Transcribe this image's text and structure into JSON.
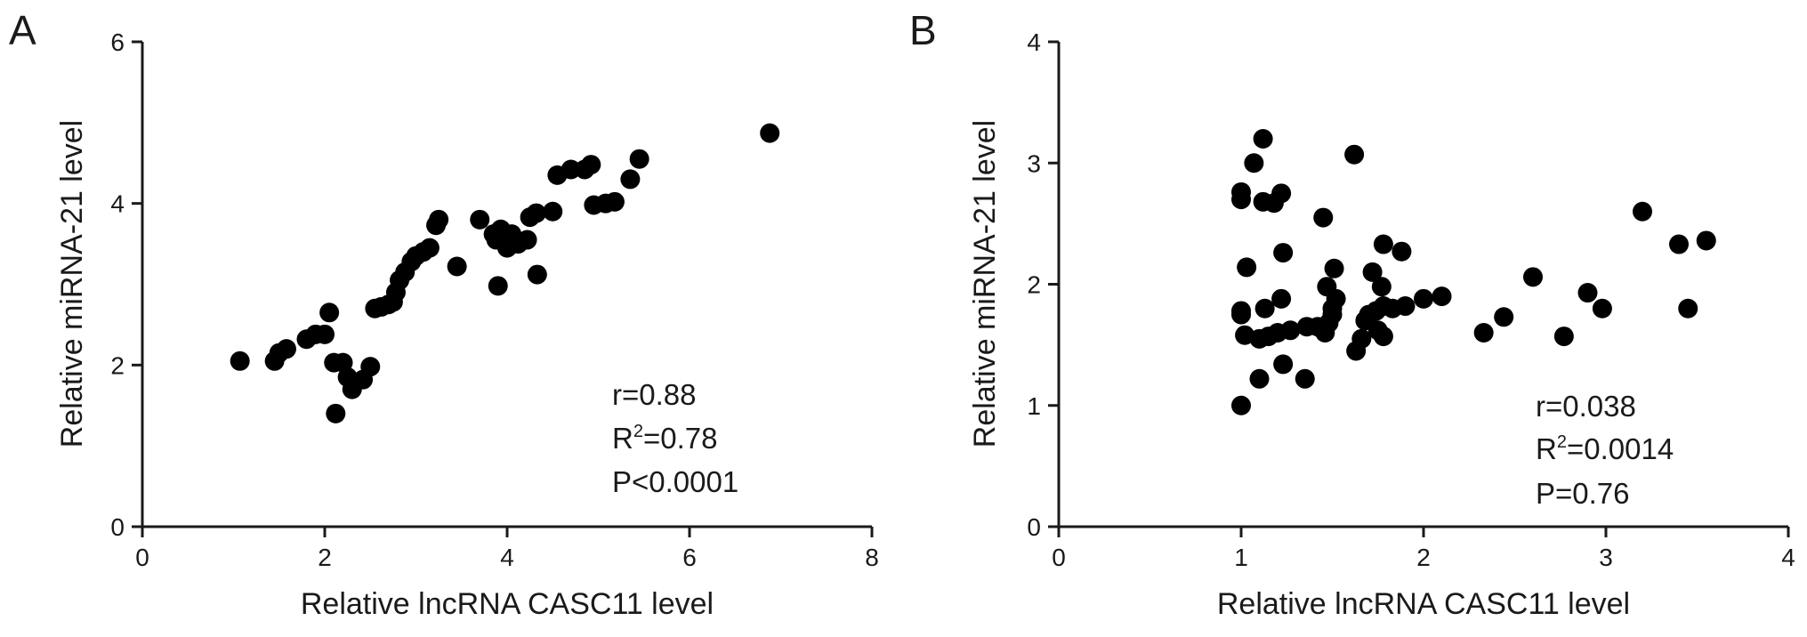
{
  "chart_data": [
    {
      "type": "scatter",
      "panel_label": "A",
      "xlabel": "Relative lncRNA CASC11 level",
      "ylabel": "Relative miRNA-21 level",
      "xlim": [
        0,
        8
      ],
      "ylim": [
        0,
        6
      ],
      "xticks": [
        "0",
        "2",
        "4",
        "6",
        "8"
      ],
      "yticks": [
        "0",
        "2",
        "4",
        "6"
      ],
      "grid": false,
      "stats": {
        "r": "r=0.88",
        "r2_prefix": "R",
        "r2_sup": "2",
        "r2_value": "=0.78",
        "p": "P<0.0001"
      },
      "points": [
        [
          1.07,
          2.05
        ],
        [
          1.45,
          2.05
        ],
        [
          1.5,
          2.15
        ],
        [
          1.58,
          2.2
        ],
        [
          1.8,
          2.32
        ],
        [
          1.9,
          2.38
        ],
        [
          2.0,
          2.38
        ],
        [
          2.05,
          2.65
        ],
        [
          2.1,
          2.03
        ],
        [
          2.12,
          1.4
        ],
        [
          2.2,
          2.03
        ],
        [
          2.25,
          1.85
        ],
        [
          2.3,
          1.7
        ],
        [
          2.42,
          1.82
        ],
        [
          2.5,
          1.98
        ],
        [
          2.55,
          2.7
        ],
        [
          2.62,
          2.72
        ],
        [
          2.7,
          2.75
        ],
        [
          2.75,
          2.78
        ],
        [
          2.78,
          2.9
        ],
        [
          2.82,
          3.05
        ],
        [
          2.88,
          3.15
        ],
        [
          2.95,
          3.28
        ],
        [
          3.0,
          3.35
        ],
        [
          3.08,
          3.4
        ],
        [
          3.15,
          3.45
        ],
        [
          3.22,
          3.73
        ],
        [
          3.25,
          3.8
        ],
        [
          3.45,
          3.22
        ],
        [
          3.7,
          3.8
        ],
        [
          3.85,
          3.62
        ],
        [
          3.88,
          3.55
        ],
        [
          3.9,
          2.98
        ],
        [
          3.93,
          3.68
        ],
        [
          4.0,
          3.45
        ],
        [
          4.05,
          3.62
        ],
        [
          4.12,
          3.5
        ],
        [
          4.22,
          3.55
        ],
        [
          4.25,
          3.83
        ],
        [
          4.32,
          3.88
        ],
        [
          4.33,
          3.12
        ],
        [
          4.5,
          3.9
        ],
        [
          4.55,
          4.35
        ],
        [
          4.7,
          4.42
        ],
        [
          4.85,
          4.42
        ],
        [
          4.92,
          4.48
        ],
        [
          4.95,
          3.98
        ],
        [
          5.08,
          4.0
        ],
        [
          5.18,
          4.02
        ],
        [
          5.35,
          4.3
        ],
        [
          5.45,
          4.55
        ],
        [
          6.88,
          4.87
        ]
      ]
    },
    {
      "type": "scatter",
      "panel_label": "B",
      "xlabel": "Relative lncRNA CASC11 level",
      "ylabel": "Relative miRNA-21 level",
      "xlim": [
        0,
        4
      ],
      "ylim": [
        0,
        4
      ],
      "xticks": [
        "0",
        "1",
        "2",
        "3",
        "4"
      ],
      "yticks": [
        "0",
        "1",
        "2",
        "3",
        "4"
      ],
      "grid": false,
      "stats": {
        "r": "r=0.038",
        "r2_prefix": "R",
        "r2_sup": "2",
        "r2_value": "=0.0014",
        "p": "P=0.76"
      },
      "points": [
        [
          1.0,
          2.76
        ],
        [
          1.0,
          2.7
        ],
        [
          1.0,
          1.78
        ],
        [
          1.0,
          1.75
        ],
        [
          1.0,
          1.0
        ],
        [
          1.02,
          1.58
        ],
        [
          1.03,
          2.14
        ],
        [
          1.07,
          3.0
        ],
        [
          1.1,
          1.55
        ],
        [
          1.1,
          1.22
        ],
        [
          1.12,
          3.2
        ],
        [
          1.12,
          2.68
        ],
        [
          1.13,
          1.8
        ],
        [
          1.15,
          1.57
        ],
        [
          1.18,
          2.67
        ],
        [
          1.2,
          1.6
        ],
        [
          1.22,
          1.88
        ],
        [
          1.22,
          2.75
        ],
        [
          1.23,
          2.26
        ],
        [
          1.23,
          1.34
        ],
        [
          1.27,
          1.62
        ],
        [
          1.35,
          1.22
        ],
        [
          1.36,
          1.65
        ],
        [
          1.42,
          1.65
        ],
        [
          1.45,
          2.55
        ],
        [
          1.46,
          1.6
        ],
        [
          1.47,
          1.98
        ],
        [
          1.48,
          1.68
        ],
        [
          1.5,
          1.8
        ],
        [
          1.5,
          1.75
        ],
        [
          1.51,
          2.13
        ],
        [
          1.52,
          1.88
        ],
        [
          1.62,
          3.07
        ],
        [
          1.63,
          1.45
        ],
        [
          1.66,
          1.55
        ],
        [
          1.68,
          1.7
        ],
        [
          1.7,
          1.75
        ],
        [
          1.72,
          2.1
        ],
        [
          1.74,
          1.78
        ],
        [
          1.75,
          1.62
        ],
        [
          1.77,
          1.98
        ],
        [
          1.78,
          1.82
        ],
        [
          1.78,
          1.57
        ],
        [
          1.78,
          2.33
        ],
        [
          1.83,
          1.8
        ],
        [
          1.88,
          2.27
        ],
        [
          1.9,
          1.82
        ],
        [
          2.0,
          1.88
        ],
        [
          2.1,
          1.9
        ],
        [
          2.33,
          1.6
        ],
        [
          2.44,
          1.73
        ],
        [
          2.6,
          2.06
        ],
        [
          2.77,
          1.57
        ],
        [
          2.9,
          1.93
        ],
        [
          2.98,
          1.8
        ],
        [
          3.2,
          2.6
        ],
        [
          3.4,
          2.33
        ],
        [
          3.45,
          1.8
        ],
        [
          3.55,
          2.36
        ]
      ]
    }
  ]
}
